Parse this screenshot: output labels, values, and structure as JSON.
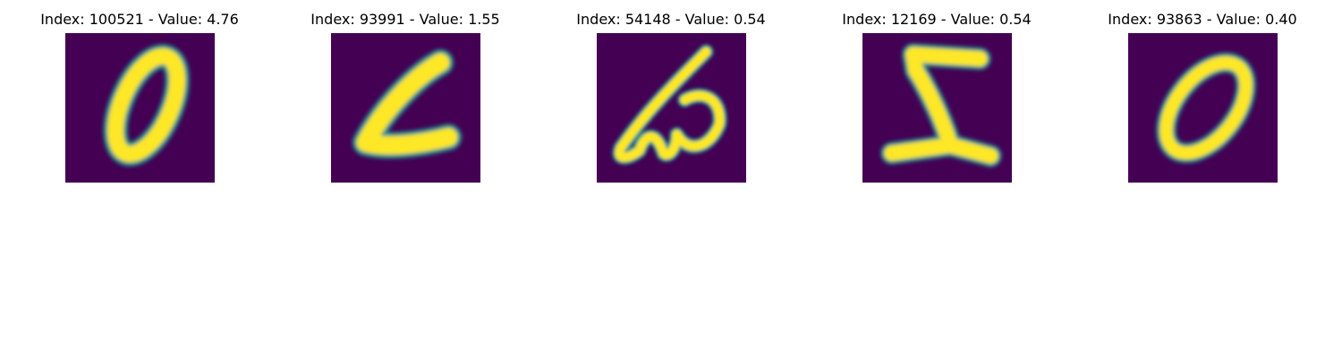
{
  "figure": {
    "panels": [
      {
        "title": "Index: 100521 - Value: 4.76",
        "image": "digit-zero-image"
      },
      {
        "title": "Index: 93991 - Value: 1.55",
        "image": "digit-stroke-image"
      },
      {
        "title": "Index: 54148 - Value: 0.54",
        "image": "digit-loop-image"
      },
      {
        "title": "Index: 12169 - Value: 0.54",
        "image": "digit-z-image"
      },
      {
        "title": "Index: 93863 - Value: 0.40",
        "image": "digit-zero-image"
      }
    ],
    "colors": {
      "background": "#440154",
      "mid": "#21918c",
      "high": "#fde725"
    }
  }
}
